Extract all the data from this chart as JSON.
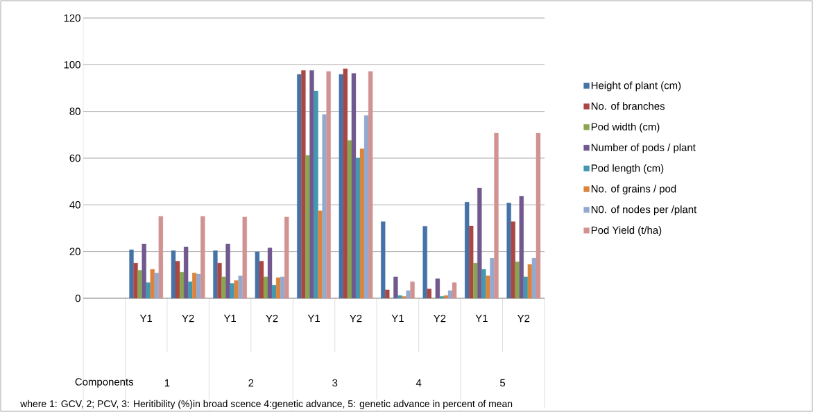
{
  "chart_data": {
    "type": "bar",
    "categories": [
      null,
      "Y1",
      "Y2",
      "Y1",
      "Y2",
      "Y1",
      "Y2",
      "Y1",
      "Y2",
      "Y1",
      "Y2"
    ],
    "series": [
      {
        "name": "Height of plant (cm)",
        "color": "#4572a7",
        "values": [
          null,
          20.8,
          20.4,
          20.4,
          19.9,
          95.9,
          95.9,
          32.8,
          30.8,
          41.2,
          40.8
        ]
      },
      {
        "name": "No. of branches",
        "color": "#aa4643",
        "values": [
          null,
          15.1,
          15.9,
          15.1,
          15.9,
          97.6,
          98.3,
          3.6,
          4.0,
          30.9,
          32.8
        ]
      },
      {
        "name": "Pod width (cm)",
        "color": "#89a54e",
        "values": [
          null,
          12.0,
          11.2,
          9.2,
          9.2,
          61.2,
          67.6,
          0,
          0,
          15.1,
          15.6
        ]
      },
      {
        "name": "Number of pods / plant",
        "color": "#71588f",
        "values": [
          null,
          23.2,
          22.0,
          23.2,
          21.6,
          97.6,
          96.3,
          9.2,
          8.4,
          47.2,
          43.7
        ]
      },
      {
        "name": "Pod length (cm)",
        "color": "#4198af",
        "values": [
          null,
          6.7,
          7.1,
          6.4,
          5.6,
          88.8,
          60.0,
          1.2,
          0.8,
          12.4,
          9.2
        ]
      },
      {
        "name": "No. of grains / pod",
        "color": "#db843d",
        "values": [
          null,
          12.4,
          10.8,
          7.6,
          8.8,
          37.5,
          64.0,
          0.8,
          1.2,
          9.6,
          14.5
        ]
      },
      {
        "name": "N0.  of nodes per /plant",
        "color": "#93a9cf",
        "values": [
          null,
          10.8,
          10.4,
          9.6,
          9.2,
          78.7,
          78.3,
          3.3,
          3.3,
          17.2,
          17.2
        ]
      },
      {
        "name": "Pod Yield  (t/ha)",
        "color": "#d19392",
        "values": [
          null,
          35.1,
          35.1,
          34.8,
          34.8,
          97.1,
          97.1,
          7.1,
          6.7,
          70.7,
          70.7
        ]
      }
    ],
    "ylim": [
      0,
      120
    ],
    "yticks": [
      0,
      20,
      40,
      60,
      80,
      100,
      120
    ],
    "grid": "y",
    "legend": "right",
    "annotations": [
      "Components",
      "1",
      "2",
      "3",
      "4",
      "5",
      "where 1: GCV, 2; PCV, 3: Heritibility (%)in broad scence 4:genetic advance, 5: genetic advance in percent of mean"
    ]
  }
}
